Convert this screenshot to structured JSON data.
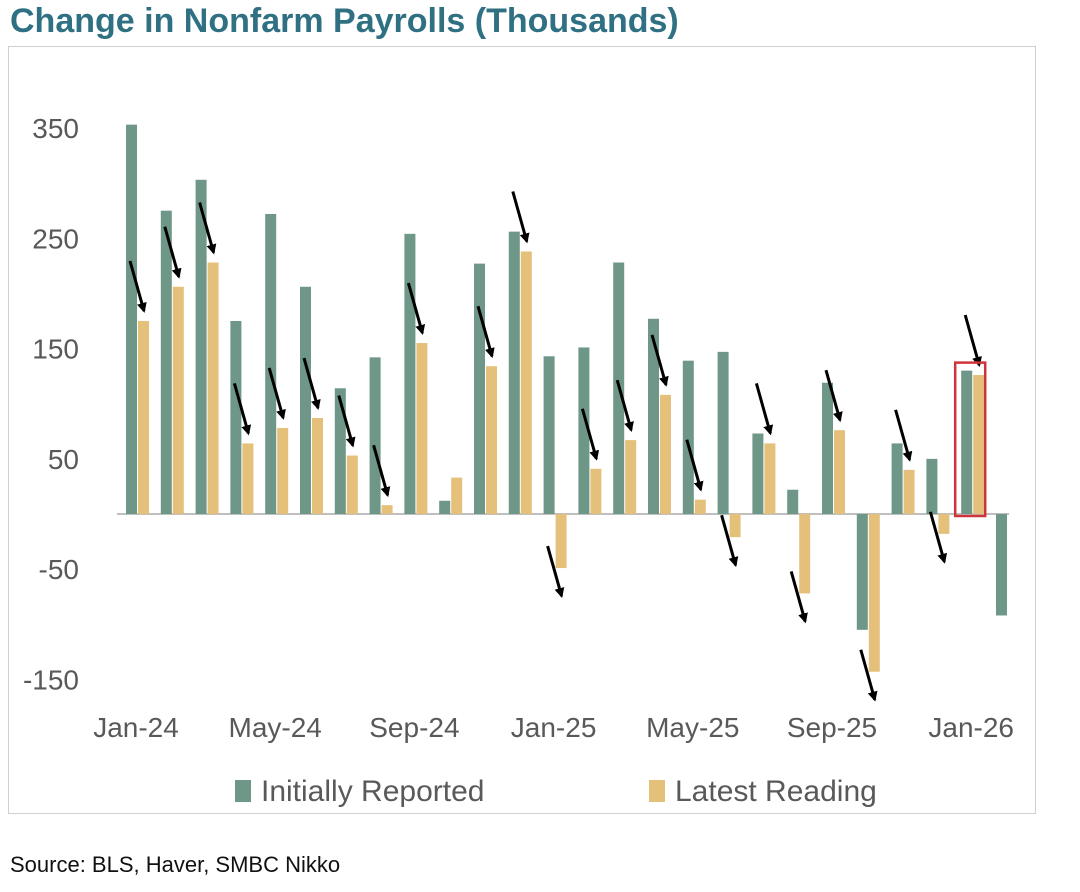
{
  "title": "Change in Nonfarm Payrolls (Thousands)",
  "source": "Source: BLS, Haver, SMBC Nikko",
  "chart_data": {
    "type": "bar",
    "title": "Change in Nonfarm Payrolls (Thousands)",
    "xlabel": "",
    "ylabel": "",
    "ylim": [
      -180,
      380
    ],
    "yticks": [
      -150,
      -50,
      50,
      150,
      250,
      350
    ],
    "grid": false,
    "legend": "bottom-center",
    "categories": [
      "Jan-24",
      "Feb-24",
      "Mar-24",
      "Apr-24",
      "May-24",
      "Jun-24",
      "Jul-24",
      "Aug-24",
      "Sep-24",
      "Oct-24",
      "Nov-24",
      "Dec-24",
      "Jan-25",
      "Feb-25",
      "Mar-25",
      "Apr-25",
      "May-25",
      "Jun-25",
      "Jul-25",
      "Aug-25",
      "Sep-25",
      "Oct-25",
      "Nov-25",
      "Dec-25",
      "Jan-26",
      "Feb-26"
    ],
    "x_tick_labels": [
      "Jan-24",
      "May-24",
      "Sep-24",
      "Jan-25",
      "May-25",
      "Sep-25",
      "Jan-26"
    ],
    "series": [
      {
        "name": "Initially Reported",
        "color": "#6e9787",
        "values": [
          353,
          275,
          303,
          175,
          272,
          206,
          114,
          142,
          254,
          12,
          227,
          256,
          143,
          151,
          228,
          177,
          139,
          147,
          73,
          22,
          119,
          -105,
          64,
          50,
          130,
          -92
        ]
      },
      {
        "name": "Latest Reading",
        "color": "#e5c07b",
        "values": [
          175,
          206,
          228,
          64,
          78,
          87,
          53,
          8,
          155,
          33,
          134,
          238,
          -49,
          41,
          67,
          108,
          13,
          -21,
          64,
          -72,
          76,
          -143,
          40,
          -18,
          126,
          null
        ]
      }
    ],
    "annotations": {
      "revision_arrows_at": [
        "Jan-24",
        "Feb-24",
        "Mar-24",
        "Apr-24",
        "May-24",
        "Jun-24",
        "Jul-24",
        "Aug-24",
        "Sep-24",
        "Nov-24",
        "Dec-24",
        "Jan-25",
        "Feb-25",
        "Mar-25",
        "Apr-25",
        "May-25",
        "Jun-25",
        "Jul-25",
        "Aug-25",
        "Sep-25",
        "Oct-25",
        "Nov-25",
        "Dec-25",
        "Jan-26"
      ],
      "highlight_box": "Jan-26",
      "arrow_color": "#000000",
      "highlight_color": "#d0343b"
    }
  }
}
